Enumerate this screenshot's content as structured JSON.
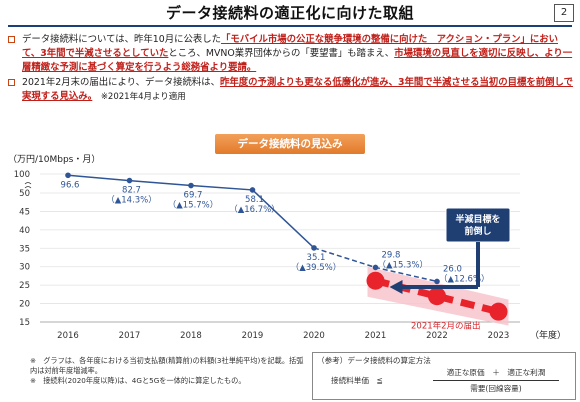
{
  "header": {
    "title": "データ接続料の適正化に向けた取組",
    "page": "2"
  },
  "bullets": [
    {
      "parts": [
        {
          "t": "データ接続料については、昨年10月に公表した",
          "s": ""
        },
        {
          "t": "「モバイル市場の公正な競争環境の整備に向けた　アクション・プラン」において、3年間で半減させるとしていた",
          "s": "red"
        },
        {
          "t": "ところ、MVNO業界団体からの「要望書」も踏まえ、",
          "s": ""
        },
        {
          "t": "市場環境の見直しを適切に反映し、より一層精緻な予測に基づく算定を行うよう総務省より要請。",
          "s": "red"
        }
      ]
    },
    {
      "parts": [
        {
          "t": "2021年2月末の届出により、データ接続料は、",
          "s": ""
        },
        {
          "t": "昨年度の予測よりも更なる低廉化が進み、3年間で半減させる当初の目標を前倒しで実現する見込み。",
          "s": "red"
        },
        {
          "t": "　※2021年4月より適用",
          "s": "small"
        }
      ]
    }
  ],
  "chart_data": {
    "type": "line",
    "title": "データ接続料の見込み",
    "ylabel": "（万円/10Mbps・月）",
    "xlabel": "（年度）",
    "x": [
      "2016",
      "2017",
      "2018",
      "2019",
      "2020",
      "2021",
      "2022",
      "2023"
    ],
    "yticks": [
      "100",
      "50",
      "45",
      "40",
      "35",
      "30",
      "25",
      "20",
      "15"
    ],
    "ylim": [
      15,
      100
    ],
    "axis_break": "between 50 and 100",
    "series": [
      {
        "name": "",
        "style": "solid-then-dashed",
        "color": "#2f5597",
        "points": [
          {
            "x": "2016",
            "y": 96.6,
            "label": "96.6",
            "sub": ""
          },
          {
            "x": "2017",
            "y": 82.7,
            "label": "82.7",
            "sub": "（▲14.3%）"
          },
          {
            "x": "2018",
            "y": 69.7,
            "label": "69.7",
            "sub": "（▲15.7%）"
          },
          {
            "x": "2019",
            "y": 58.1,
            "label": "58.1",
            "sub": "（▲16.7%）"
          },
          {
            "x": "2020",
            "y": 35.1,
            "label": "35.1",
            "sub": "（▲39.5%）"
          },
          {
            "x": "2021",
            "y": 29.8,
            "label": "29.8",
            "sub": "（▲15.3%）"
          },
          {
            "x": "2022",
            "y": 26.0,
            "label": "26.0",
            "sub": "（▲12.6%）"
          }
        ]
      },
      {
        "name": "2021年2月の届出",
        "style": "dashed-thick",
        "color": "#e8232b",
        "points": [
          {
            "x": "2021",
            "y": 26.2
          },
          {
            "x": "2022",
            "y": 22.0
          },
          {
            "x": "2023",
            "y": 17.8
          }
        ]
      }
    ],
    "callout": "半減目標を\n前倒し",
    "callout_lines": [
      "半減目標を",
      "前倒し"
    ]
  },
  "notes": {
    "left": [
      "※　グラフは、各年度における当初支払額(精算前)の料額(3社単純平均)を記載。括弧内は対前年度増減率。",
      "※　接続料(2020年度以降)は、4Gと5Gを一体的に算定したもの。"
    ],
    "box_header": "（参考）データ接続料の算定方法",
    "box_lhs": "接続料単価　≦",
    "box_num": "適正な原価　＋　適正な利潤",
    "box_den": "需要(回線容量)"
  },
  "colors": {
    "accent": "#1a3f7a",
    "banner": "#e8863a",
    "line": "#2f5597",
    "red": "#e8232b"
  }
}
